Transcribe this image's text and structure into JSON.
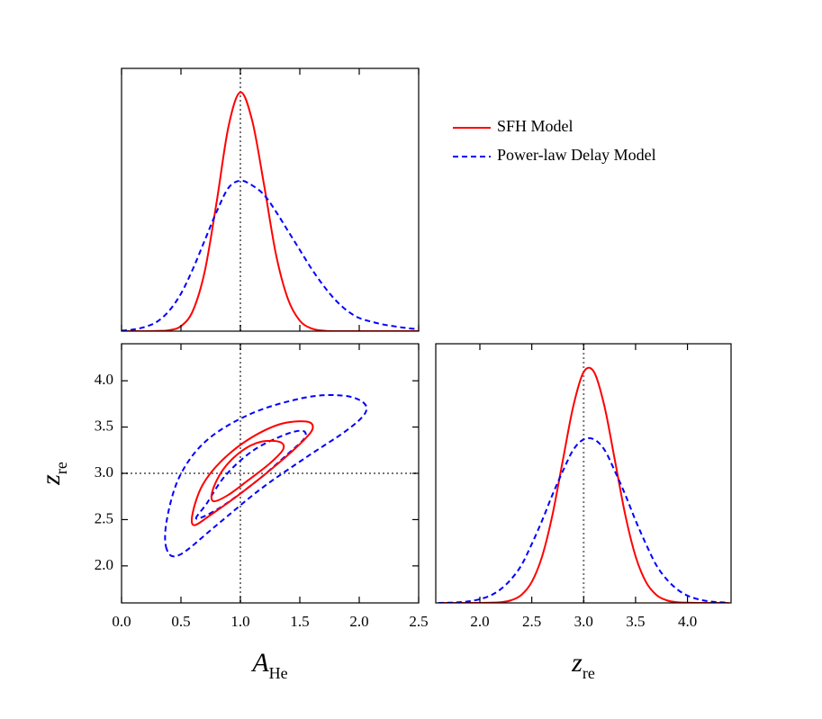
{
  "chart_data": [
    {
      "type": "line",
      "xlim": [
        0,
        2.5
      ],
      "ylim": [
        0,
        1.1
      ],
      "xticks": [
        0,
        0.5,
        1,
        1.5,
        2,
        2.5
      ],
      "show_xtick_labels": false,
      "reference_x": 1.0,
      "legend": "outside right",
      "x": [
        0,
        0.1,
        0.2,
        0.3,
        0.4,
        0.5,
        0.6,
        0.7,
        0.8,
        0.9,
        1.0,
        1.1,
        1.2,
        1.3,
        1.4,
        1.5,
        1.6,
        1.7,
        1.8,
        1.9,
        2.0,
        2.1,
        2.2,
        2.3,
        2.4,
        2.5
      ],
      "series": [
        {
          "name": "SFH Model",
          "color": "#ff0000",
          "style": "solid",
          "values": [
            0,
            0,
            0,
            0.001,
            0.004,
            0.021,
            0.085,
            0.25,
            0.54,
            0.857,
            1.0,
            0.88,
            0.61,
            0.32,
            0.135,
            0.044,
            0.011,
            0.002,
            0,
            0,
            0,
            0,
            0,
            0,
            0,
            0
          ]
        },
        {
          "name": "Power-law Delay Model",
          "color": "#0000ff",
          "style": "dashed",
          "values": [
            0.002,
            0.007,
            0.018,
            0.04,
            0.085,
            0.157,
            0.26,
            0.38,
            0.5,
            0.6,
            0.63,
            0.61,
            0.57,
            0.5,
            0.42,
            0.34,
            0.26,
            0.19,
            0.13,
            0.085,
            0.055,
            0.04,
            0.028,
            0.02,
            0.013,
            0.008
          ]
        }
      ]
    },
    {
      "type": "contour",
      "xlim": [
        0,
        2.5
      ],
      "ylim": [
        1.6,
        4.4
      ],
      "xticks": [
        {
          "value": 0,
          "label": "0.0"
        },
        0.5,
        {
          "value": 1,
          "label": "1.0"
        },
        1.5,
        {
          "value": 2,
          "label": "2.0"
        },
        2.5
      ],
      "yticks": [
        {
          "value": 2,
          "label": "2.0"
        },
        2.5,
        {
          "value": 3,
          "label": "3.0"
        },
        3.5,
        {
          "value": 4,
          "label": "4.0"
        }
      ],
      "x_label": {
        "main": "A",
        "sub": "He"
      },
      "y_label": {
        "main": "z",
        "sub": "re"
      },
      "reference_x": 1.0,
      "reference_y": 3.0,
      "contours": [
        {
          "color": "#0000ff",
          "style": "dashed",
          "x": [
            0.38,
            0.38,
            0.49,
            0.72,
            1.1,
            1.55,
            1.86,
            2.03,
            2.05,
            1.89,
            1.55,
            1.17,
            0.8,
            0.49
          ],
          "y": [
            2.18,
            2.49,
            2.97,
            3.36,
            3.65,
            3.82,
            3.84,
            3.77,
            3.65,
            3.46,
            3.17,
            2.83,
            2.44,
            2.12
          ]
        },
        {
          "color": "#0000ff",
          "style": "dashed",
          "x": [
            0.63,
            0.72,
            0.87,
            1.1,
            1.36,
            1.52,
            1.54,
            1.4,
            1.14,
            0.83
          ],
          "y": [
            2.51,
            2.68,
            2.97,
            3.24,
            3.41,
            3.46,
            3.38,
            3.21,
            2.92,
            2.63
          ]
        },
        {
          "color": "#ff0000",
          "style": "solid",
          "x": [
            0.61,
            0.6,
            0.68,
            0.83,
            1.06,
            1.33,
            1.55,
            1.61,
            1.55,
            1.33,
            1.02,
            0.76
          ],
          "y": [
            2.44,
            2.58,
            2.87,
            3.12,
            3.36,
            3.53,
            3.56,
            3.5,
            3.38,
            3.12,
            2.8,
            2.56
          ]
        },
        {
          "color": "#ff0000",
          "style": "solid",
          "x": [
            0.77,
            0.77,
            0.86,
            1.01,
            1.17,
            1.33,
            1.36,
            1.25,
            1.06,
            0.89
          ],
          "y": [
            2.7,
            2.83,
            3.05,
            3.24,
            3.34,
            3.34,
            3.26,
            3.11,
            2.92,
            2.76
          ]
        }
      ]
    },
    {
      "type": "line",
      "xlim": [
        1.575,
        4.42
      ],
      "ylim": [
        0,
        1.1
      ],
      "xticks": [
        {
          "value": 2,
          "label": "2.0"
        },
        2.5,
        {
          "value": 3,
          "label": "3.0"
        },
        3.5,
        {
          "value": 4,
          "label": "4.0"
        }
      ],
      "show_xtick_labels": true,
      "x_label": {
        "main": "z",
        "sub": "re"
      },
      "reference_x": 3.0,
      "x": [
        1.6,
        1.7,
        1.8,
        1.9,
        2.0,
        2.1,
        2.2,
        2.3,
        2.4,
        2.5,
        2.6,
        2.7,
        2.8,
        2.9,
        3.0,
        3.1,
        3.2,
        3.3,
        3.4,
        3.5,
        3.6,
        3.7,
        3.8,
        3.9,
        4.0,
        4.1,
        4.2,
        4.3,
        4.4
      ],
      "series": [
        {
          "name": "SFH Model",
          "color": "#ff0000",
          "style": "solid",
          "values": [
            0,
            0,
            0,
            0,
            0,
            0.001,
            0.003,
            0.011,
            0.034,
            0.089,
            0.198,
            0.375,
            0.607,
            0.835,
            0.98,
            0.98,
            0.835,
            0.607,
            0.375,
            0.198,
            0.089,
            0.034,
            0.011,
            0.003,
            0.001,
            0,
            0,
            0,
            0
          ]
        },
        {
          "name": "Power-law Delay Model",
          "color": "#0000ff",
          "style": "dashed",
          "values": [
            0,
            0.001,
            0.003,
            0.007,
            0.016,
            0.031,
            0.058,
            0.1,
            0.16,
            0.25,
            0.35,
            0.46,
            0.56,
            0.65,
            0.694,
            0.694,
            0.65,
            0.56,
            0.46,
            0.35,
            0.25,
            0.16,
            0.1,
            0.058,
            0.031,
            0.016,
            0.007,
            0.003,
            0.001
          ]
        }
      ]
    }
  ]
}
